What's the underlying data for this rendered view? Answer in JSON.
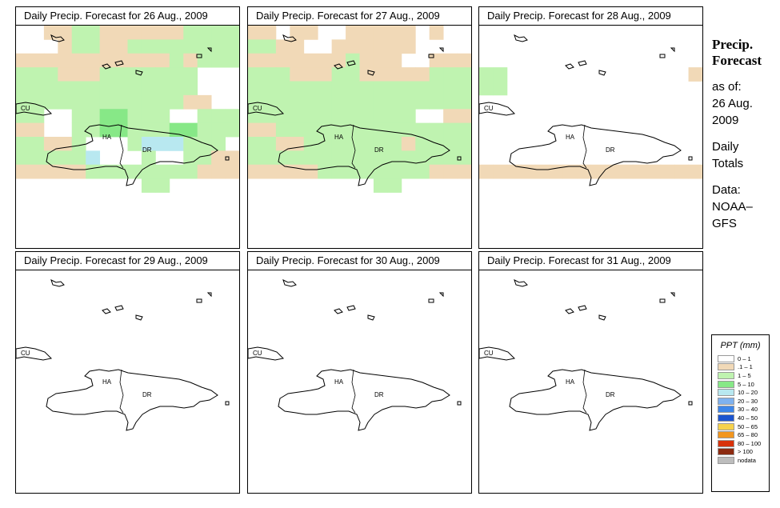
{
  "panels": [
    {
      "title": "Daily Precip. Forecast for  26 Aug., 2009",
      "grid": [
        "BBAAGGAAAAAAGGGG",
        "BBBAGGAAGGGGGGGG",
        "AAAAAAAAAAAGAGGG",
        "GGGAAAGGGGGGGBBB",
        "GGGGGGGGGGGGGBBB",
        "GGGGGGGGGGGGAABB",
        "GGBBGGDDGGGBBGGG",
        "AABBGGDDGGGDDGGG",
        "GGAAGBBBGCCCGGGB",
        "GGGGGCBBBGBBGGAA",
        "AAAAAGGGGGGGGAAA",
        "BBBBBBBBBGGBBBBB",
        "BBBBBBBBBBBBBBBB",
        "BBBBBBBBBBBBBBBB",
        "BBBBBBBBBBBBBBBB",
        "BBBBBBBBBBBBBBBB"
      ]
    },
    {
      "title": "Daily Precip. Forecast for  27 Aug., 2009",
      "grid": [
        "AABAABBAAAAABABB",
        "GGAABBAAAAAABBBB",
        "AAAAAAAGAAABBAAA",
        "GGGAAAGGAAAAAGGG",
        "GGGGGGGGGGGGGGGG",
        "GGGGGGGGGGGGGGGG",
        "GGGGGGGGGGGGBBAA",
        "AAGGGGGGGGGGGGGG",
        "GGAAGGGGGGGAGGGG",
        "GGGGGGGGGGGGGGGG",
        "AAAAAGGGGGGGGAAA",
        "BBBBBBBBBGGBBBBB",
        "BBBBBBBBBBBBBBBB",
        "BBBBBBBBBBBBBBBB",
        "BBBBBBBBBBBBBBBB",
        "BBBBBBBBBBBBBBBB"
      ]
    },
    {
      "title": "Daily Precip. Forecast for  28 Aug., 2009",
      "grid": [
        "BBBBBBBBBBBBBBBB",
        "BBBBBBBBBBBBBBBB",
        "BBBBBBBBBBBBBBBB",
        "GGBBBBBBBBBBBBBA",
        "GGBBBBBBBBBBBBBB",
        "BBBBBBBBBBBBBBBB",
        "BBBBBBBBBBBBBBBB",
        "BBBBBBBBBBBBBBBB",
        "BBBBBBBBBBBBBBBB",
        "BBBBBBBBBBBBBBBB",
        "AAAAAAAAAAAAAAAA",
        "BBBBBBBBBBBBBBBB",
        "BBBBBBBBBBBBBBBB",
        "BBBBBBBBBBBBBBBB",
        "BBBBBBBBBBBBBBBB",
        "BBBBBBBBBBBBBBBB"
      ]
    },
    {
      "title": "Daily Precip. Forecast for  29 Aug., 2009",
      "grid": [
        "BBBBBBBBBBBBBBBB",
        "BBBBBBBBBBBBBBBB",
        "BBBBBBBBBBBBBBBB",
        "BBBBBBBBBBBBBBBB",
        "BBBBBBBBBBBBBBBB",
        "BBBBBBBBBBBBBBBB",
        "BBBBBBBBBBBBBBBB",
        "BBBBBBBBBBBBBBBB",
        "BBBBBBBBBBBBBBBB",
        "BBBBBBBBBBBBBBBB",
        "BBBBBBBBBBBBBBBB",
        "BBBBBBBBBBBBBBBB",
        "BBBBBBBBBBBBBBBB",
        "BBBBBBBBBBBBBBBB",
        "BBBBBBBBBBBBBBBB",
        "BBBBBBBBBBBBBBBB"
      ]
    },
    {
      "title": "Daily Precip. Forecast for  30 Aug., 2009",
      "grid": [
        "BBBBBBBBBBBBBBBB",
        "BBBBBBBBBBBBBBBB",
        "BBBBBBBBBBBBBBBB",
        "BBBBBBBBBBBBBBBB",
        "BBBBBBBBBBBBBBBB",
        "BBBBBBBBBBBBBBBB",
        "BBBBBBBBBBBBBBBB",
        "BBBBBBBBBBBBBBBB",
        "BBBBBBBBBBBBBBBB",
        "BBBBBBBBBBBBBBBB",
        "BBBBBBBBBBBBBBBB",
        "BBBBBBBBBBBBBBBB",
        "BBBBBBBBBBBBBBBB",
        "BBBBBBBBBBBBBBBB",
        "BBBBBBBBBBBBBBBB",
        "BBBBBBBBBBBBBBBB"
      ]
    },
    {
      "title": "Daily Precip. Forecast for  31 Aug., 2009",
      "grid": [
        "BBBBBBBBBBBBBBBB",
        "BBBBBBBBBBBBBBBB",
        "BBBBBBBBBBBBBBBB",
        "BBBBBBBBBBBBBBBB",
        "BBBBBBBBBBBBBBBB",
        "BBBBBBBBBBBBBBBB",
        "BBBBBBBBBBBBBBBB",
        "BBBBBBBBBBBBBBBB",
        "BBBBBBBBBBBBBBBB",
        "BBBBBBBBBBBBBBBB",
        "BBBBBBBBBBBBBBBB",
        "BBBBBBBBBBBBBBBB",
        "BBBBBBBBBBBBBBBB",
        "BBBBBBBBBBBBBBBB",
        "BBBBBBBBBBBBBBBB",
        "BBBBBBBBBBBBBBBB"
      ]
    }
  ],
  "map_labels": [
    "CU",
    "HA",
    "DR"
  ],
  "sidebar": {
    "heading1": "Precip.",
    "heading2": "Forecast",
    "line1": "as of:",
    "line2": "26 Aug.",
    "line3": "2009",
    "line4": "Daily",
    "line5": "Totals",
    "line6": "Data:",
    "line7": "NOAA–",
    "line8": "GFS"
  },
  "legend": {
    "title": "PPT (mm)",
    "items": [
      {
        "label": "0 – 1",
        "color": "#ffffff"
      },
      {
        "label": ".1 – 1",
        "color": "#f1d9b7"
      },
      {
        "label": "1 – 5",
        "color": "#bff3b0"
      },
      {
        "label": "5 – 10",
        "color": "#87e887"
      },
      {
        "label": "10 – 20",
        "color": "#b8e8f0"
      },
      {
        "label": "20 – 30",
        "color": "#7fb2ef"
      },
      {
        "label": "30 – 40",
        "color": "#3d86ea"
      },
      {
        "label": "40 – 50",
        "color": "#1c55cf"
      },
      {
        "label": "50 – 65",
        "color": "#f6d24c"
      },
      {
        "label": "65 – 80",
        "color": "#f2961f"
      },
      {
        "label": "80 – 100",
        "color": "#d8320b"
      },
      {
        "label": "> 100",
        "color": "#8c2a10"
      },
      {
        "label": "nodata",
        "color": "#bdbdbd"
      }
    ]
  },
  "palette": {
    "B": "#ffffff",
    "A": "#f1d9b7",
    "G": "#bff3b0",
    "D": "#87e887",
    "C": "#b8e8f0",
    "E": "#7fb2ef",
    "F": "#3d86ea",
    "H": "#1c55cf"
  }
}
